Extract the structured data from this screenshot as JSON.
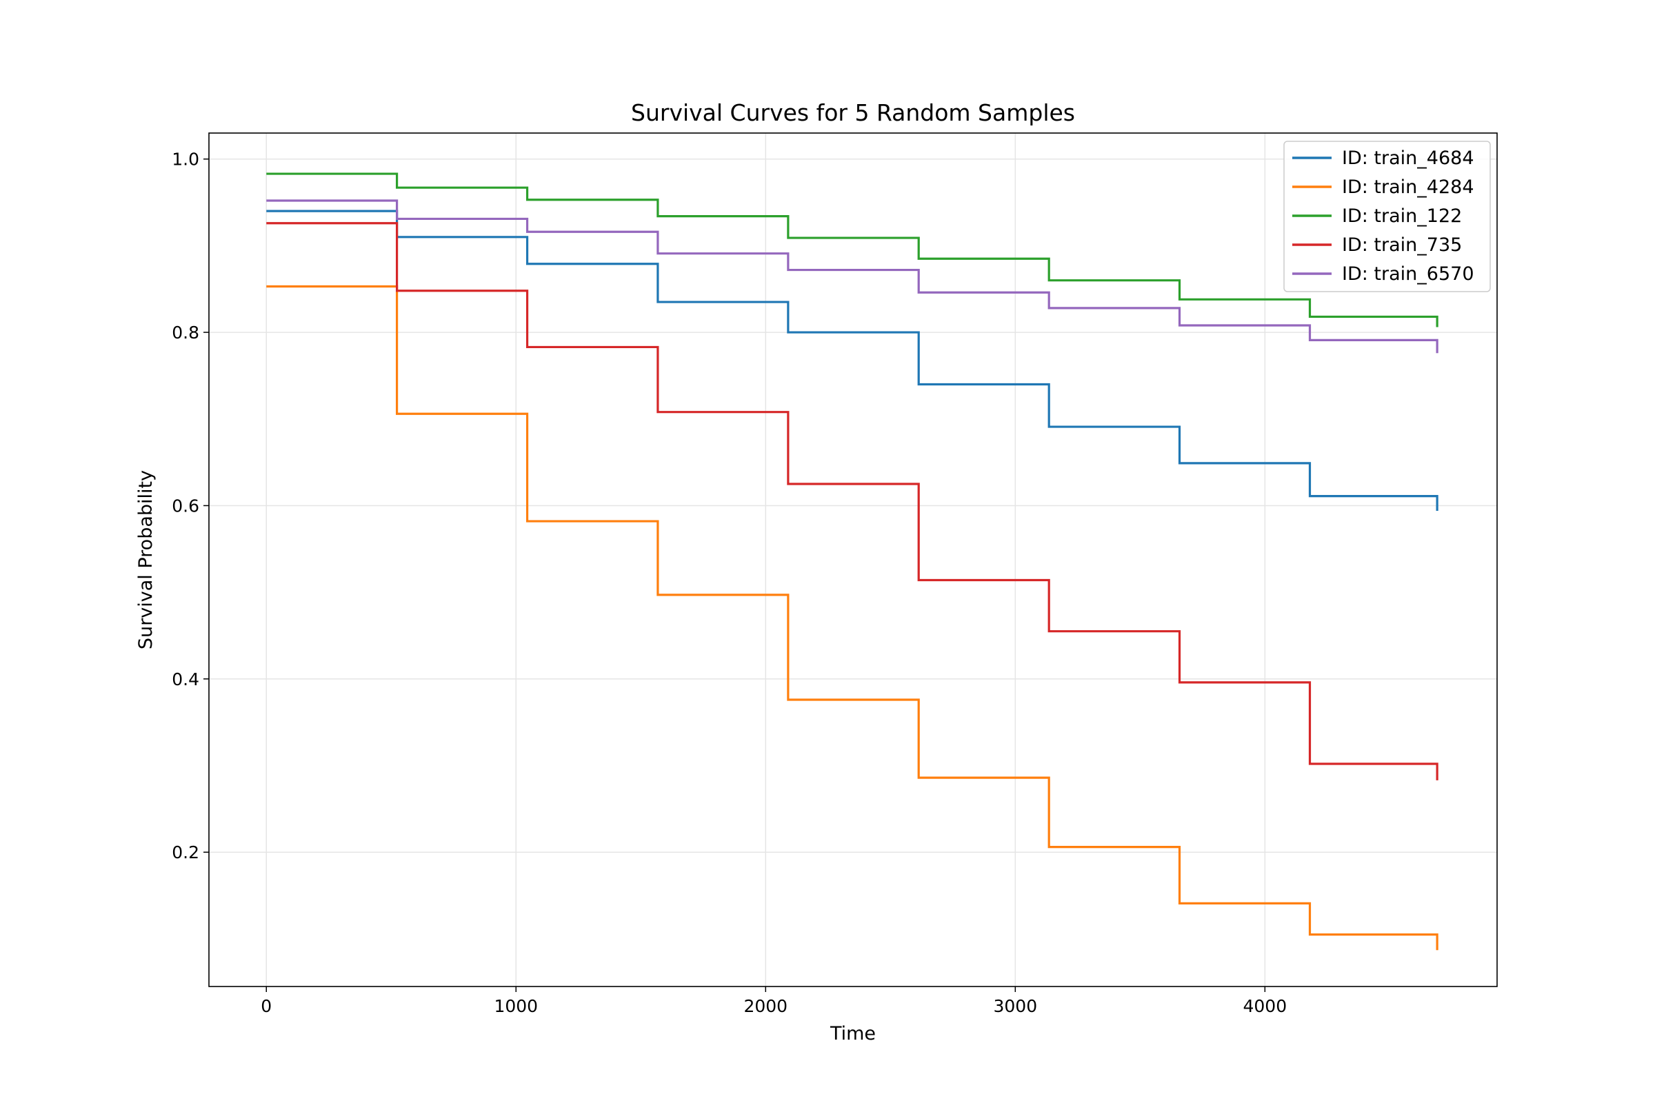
{
  "chart_data": {
    "type": "line",
    "step": "post",
    "title": "Survival Curves for 5 Random Samples",
    "xlabel": "Time",
    "ylabel": "Survival Probability",
    "xlim": [
      -230,
      4930
    ],
    "ylim": [
      0.045,
      1.03
    ],
    "xticks": [
      0,
      1000,
      2000,
      3000,
      4000
    ],
    "yticks": [
      0.2,
      0.4,
      0.6,
      0.8,
      1.0
    ],
    "grid": true,
    "legend": "top-right",
    "x": [
      0,
      523,
      1045,
      1568,
      2090,
      2613,
      3135,
      3658,
      4180,
      4690
    ],
    "series": [
      {
        "name": "ID: train_4684",
        "color": "#1f77b4",
        "values": [
          0.94,
          0.91,
          0.879,
          0.835,
          0.8,
          0.74,
          0.691,
          0.649,
          0.611,
          0.594
        ]
      },
      {
        "name": "ID: train_4284",
        "color": "#ff7f0e",
        "values": [
          0.853,
          0.706,
          0.582,
          0.497,
          0.376,
          0.286,
          0.206,
          0.141,
          0.105,
          0.087
        ]
      },
      {
        "name": "ID: train_122",
        "color": "#2ca02c",
        "values": [
          0.983,
          0.967,
          0.953,
          0.934,
          0.909,
          0.885,
          0.86,
          0.838,
          0.818,
          0.806
        ]
      },
      {
        "name": "ID: train_735",
        "color": "#d62728",
        "values": [
          0.926,
          0.848,
          0.783,
          0.708,
          0.625,
          0.514,
          0.455,
          0.396,
          0.302,
          0.283
        ]
      },
      {
        "name": "ID: train_6570",
        "color": "#9467bd",
        "values": [
          0.952,
          0.931,
          0.916,
          0.891,
          0.872,
          0.846,
          0.828,
          0.808,
          0.791,
          0.776
        ]
      }
    ]
  }
}
